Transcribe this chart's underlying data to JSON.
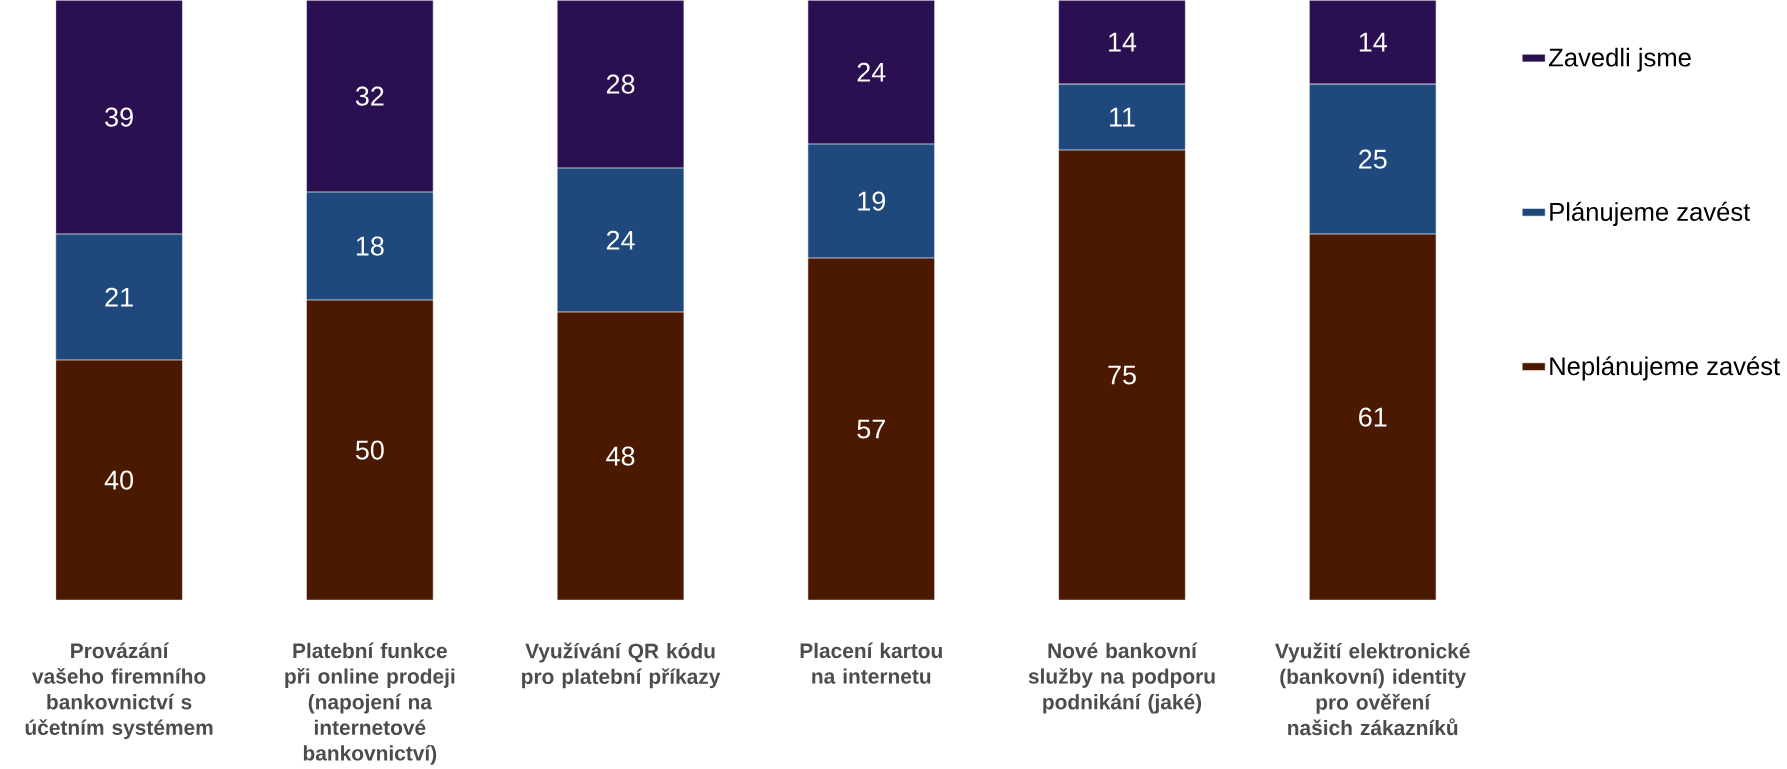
{
  "chart_data": {
    "type": "bar",
    "stacked": true,
    "data_labels": true,
    "legend": "right",
    "categories": [
      "Provázání vašeho firemního bankovnictví s účetním systémem",
      "Platební funkce při online prodeji (napojení na internetové bankovnictví)",
      "Využívání QR kódu pro platební příkazy",
      "Placení kartou na internetu",
      "Nové bankovní služby na podporu podnikání (jaké)",
      "Využití elektronické (bankovní) identity pro ověření našich zákazníků"
    ],
    "series": [
      {
        "name": "Neplánujeme zavést",
        "color": "#4a1900",
        "values": [
          40,
          50,
          48,
          57,
          75,
          61
        ]
      },
      {
        "name": "Plánujeme zavést",
        "color": "#1f497d",
        "values": [
          21,
          18,
          24,
          19,
          11,
          25
        ]
      },
      {
        "name": "Zavedli jsme",
        "color": "#2a1050",
        "values": [
          39,
          32,
          28,
          24,
          14,
          14
        ]
      }
    ]
  }
}
